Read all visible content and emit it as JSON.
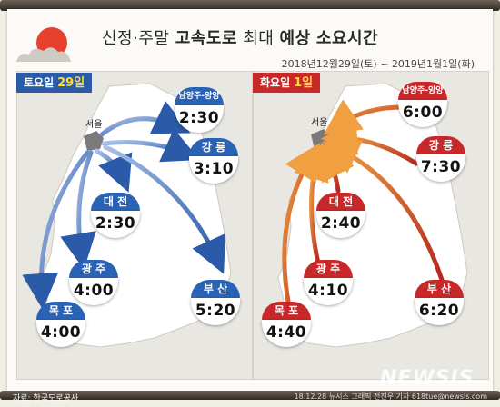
{
  "title": {
    "part1": "신정·주말",
    "part2": "고속도로",
    "part3": "최대",
    "part4": "예상",
    "part5": "소요시간"
  },
  "date_range": "2018년12월29일(토) ~ 2019년1월1일(화)",
  "left_panel": {
    "day_label": "토요일",
    "day_num": "29일",
    "origin": "서울",
    "accent": "#2a62b6",
    "routes": [
      {
        "city": "남양주-양양",
        "time": "2:30"
      },
      {
        "city": "강 릉",
        "time": "3:10"
      },
      {
        "city": "대 전",
        "time": "2:30"
      },
      {
        "city": "광 주",
        "time": "4:00"
      },
      {
        "city": "부 산",
        "time": "5:20"
      },
      {
        "city": "목 포",
        "time": "4:00"
      }
    ]
  },
  "right_panel": {
    "day_label": "화요일",
    "day_num": "1일",
    "origin": "서울",
    "accent": "#c8282a",
    "routes": [
      {
        "city": "남양주-양양",
        "time": "6:00"
      },
      {
        "city": "강 릉",
        "time": "7:30"
      },
      {
        "city": "대 전",
        "time": "2:40"
      },
      {
        "city": "광 주",
        "time": "4:10"
      },
      {
        "city": "부 산",
        "time": "6:20"
      },
      {
        "city": "목 포",
        "time": "4:40"
      }
    ]
  },
  "footer": {
    "source": "자료: 한국도로공사",
    "credit": "18.12.28 뉴시스 그래픽 전진우 기자 618tue@newsis.com"
  },
  "watermark": "NEWSIS"
}
